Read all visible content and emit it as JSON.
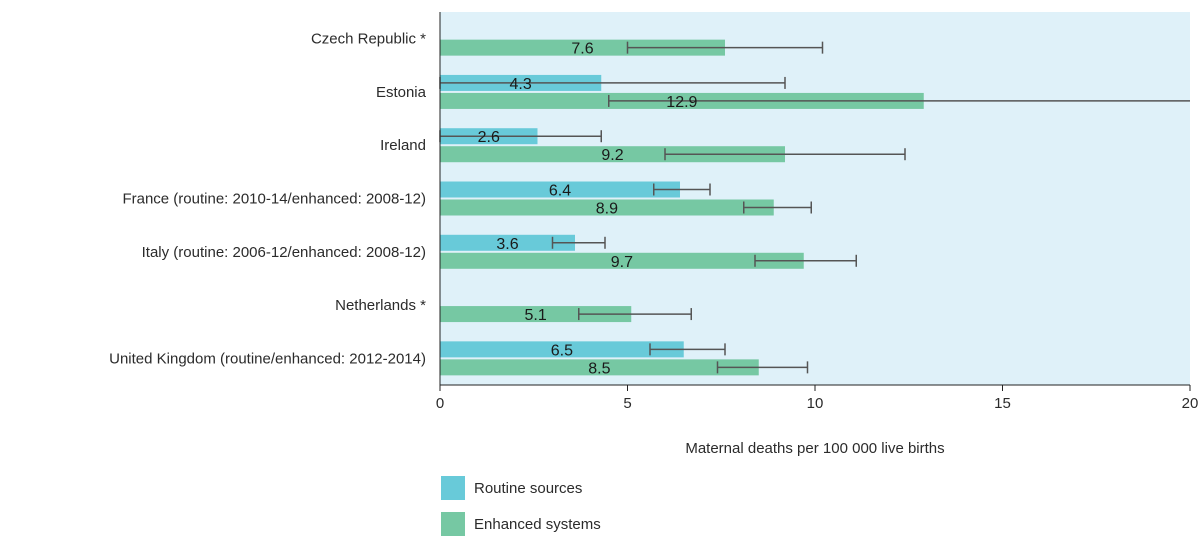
{
  "chart_data": {
    "type": "bar",
    "orientation": "horizontal",
    "categories": [
      "Czech Republic *",
      "Estonia",
      "Ireland",
      "France  (routine: 2010-14/enhanced: 2008-12)",
      "Italy (routine: 2006-12/enhanced: 2008-12)",
      "Netherlands *",
      "United Kingdom (routine/enhanced: 2012-2014)"
    ],
    "series": [
      {
        "name": "Routine sources",
        "values": [
          null,
          4.3,
          2.6,
          6.4,
          3.6,
          null,
          6.5
        ],
        "labels": [
          null,
          "4.3",
          "2.6",
          "6.4",
          "3.6",
          null,
          "6.5"
        ],
        "ci_low": [
          null,
          0.0,
          0.0,
          5.7,
          3.0,
          null,
          5.6
        ],
        "ci_high": [
          null,
          9.2,
          4.3,
          7.2,
          4.4,
          null,
          7.6
        ]
      },
      {
        "name": "Enhanced systems",
        "values": [
          7.6,
          12.9,
          9.2,
          8.9,
          9.7,
          5.1,
          8.5
        ],
        "labels": [
          "7.6",
          "12.9",
          "9.2",
          "8.9",
          "9.7",
          "5.1",
          "8.5"
        ],
        "ci_low": [
          5.0,
          4.5,
          6.0,
          8.1,
          8.4,
          3.7,
          7.4
        ],
        "ci_high": [
          10.2,
          20.0,
          12.4,
          9.9,
          11.1,
          6.7,
          9.8
        ]
      }
    ],
    "xlabel": "Maternal deaths per 100 000 live births",
    "xlim": [
      0,
      20
    ],
    "xticks": [
      0,
      5,
      10,
      15,
      20
    ],
    "grid": false,
    "legend_position": "bottom",
    "colors": {
      "routine": "#68cad9",
      "enhanced": "#76c8a3",
      "plot_background": "#dff1f9",
      "error_bar": "#555555"
    }
  }
}
